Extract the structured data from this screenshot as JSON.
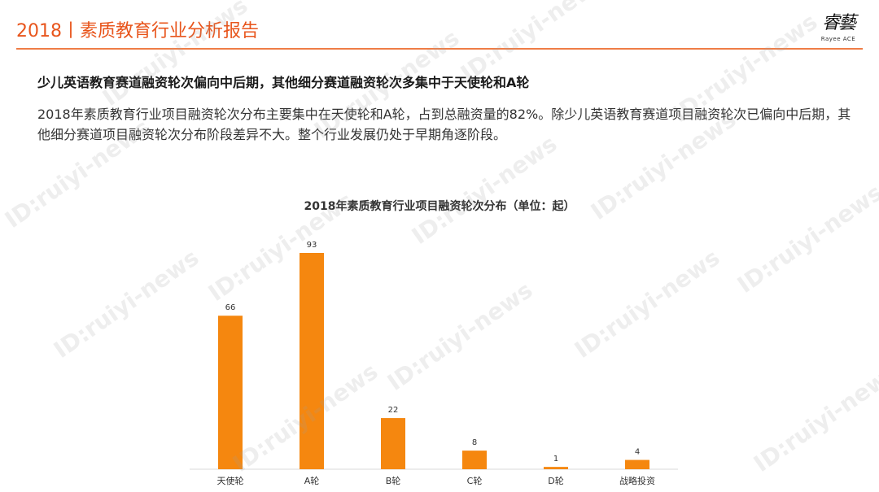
{
  "header": {
    "title": "2018丨素质教育行业分析报告",
    "logo_text": "Rayee ACE"
  },
  "subtitle": "少儿英语教育赛道融资轮次偏向中后期，其他细分赛道融资轮次多集中于天使轮和A轮",
  "paragraph": "2018年素质教育行业项目融资轮次分布主要集中在天使轮和A轮，占到总融资量的82%。除少儿英语教育赛道项目融资轮次已偏向中后期，其他细分赛道项目融资轮次分布阶段差异不大。整个行业发展仍处于早期角逐阶段。",
  "watermark_text": "ID:ruiyi-news",
  "colors": {
    "accent": "#e8551c",
    "bar": "#f5870f"
  },
  "chart_data": {
    "type": "bar",
    "title": "2018年素质教育行业项目融资轮次分布（单位：起）",
    "categories": [
      "天使轮",
      "A轮",
      "B轮",
      "C轮",
      "D轮",
      "战略投资"
    ],
    "values": [
      66,
      93,
      22,
      8,
      1,
      4
    ],
    "ylim": [
      0,
      100
    ],
    "grid": false,
    "legend": "none",
    "xlabel": "",
    "ylabel": ""
  }
}
